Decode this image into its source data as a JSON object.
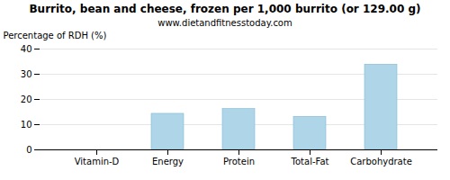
{
  "chart_data": {
    "type": "bar",
    "title": "Burrito, bean and cheese, frozen per 1,000 burrito (or 129.00 g)",
    "subtitle": "www.dietandfitnesstoday.com",
    "categories": [
      "Vitamin-D",
      "Energy",
      "Protein",
      "Total-Fat",
      "Carbohydrate"
    ],
    "values": [
      0,
      14.3,
      16.2,
      13.1,
      33.8
    ],
    "color": "#aed6e8",
    "ylabel": "Percentage of RDH (%)",
    "ylim": [
      0,
      40
    ],
    "yticks": [
      0,
      10,
      20,
      30,
      40
    ],
    "grid": true
  }
}
